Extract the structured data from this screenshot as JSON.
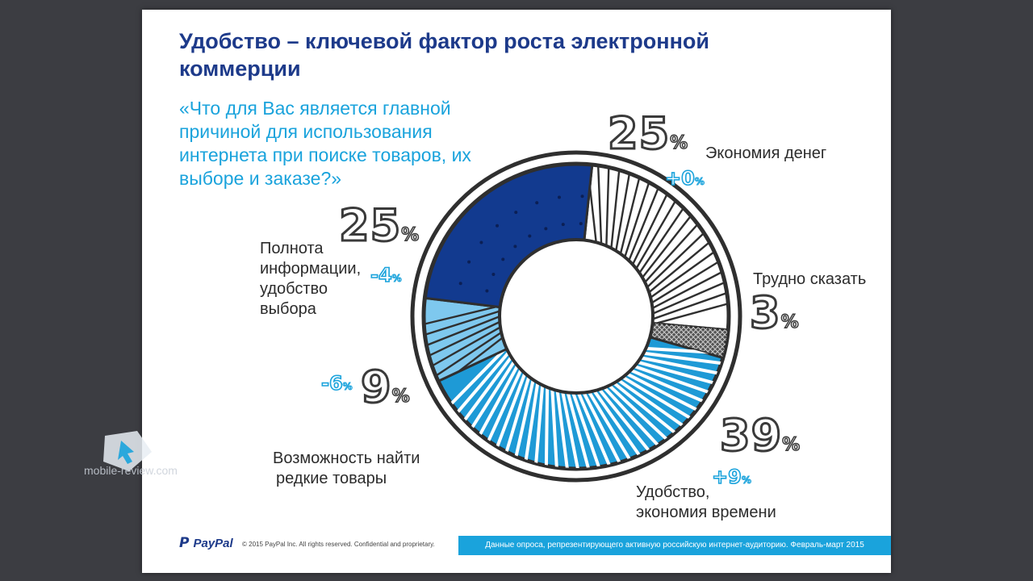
{
  "title": "Удобство – ключевой фактор роста электронной коммерции",
  "question": "«Что для Вас является главной причиной для использования интернета при поиске товаров, их выборе и заказе?»",
  "chart_data": {
    "type": "pie",
    "variant": "donut",
    "slices": [
      {
        "label": "Экономия денег",
        "value": 25,
        "change": "+0%",
        "color": "#ffffff",
        "pattern": "stripes-dark"
      },
      {
        "label": "Трудно сказать",
        "value": 3,
        "change": "",
        "color": "#555555",
        "pattern": "crosshatch"
      },
      {
        "label": "Удобство, экономия времени",
        "value": 39,
        "change": "+9%",
        "color": "#1e9ad6",
        "pattern": "stripes-white"
      },
      {
        "label": "Возможность найти редкие товары",
        "value": 9,
        "change": "-6%",
        "color": "#7ec8ee",
        "pattern": "stripes-dark"
      },
      {
        "label": "Полнота информации, удобство выбора",
        "value": 25,
        "change": "-4%",
        "color": "#123a8f",
        "pattern": "dots"
      }
    ],
    "labels": {
      "econ": "Экономия денег",
      "hard": "Трудно сказать",
      "conv_1": "Удобство,",
      "conv_2": "экономия времени",
      "rare_1": "Возможность найти",
      "rare_2": "редкие товары",
      "full_1": "Полнота",
      "full_2": "информации,",
      "full_3": "удобство",
      "full_4": "выбора"
    },
    "numbers": {
      "econ": "25",
      "hard": "3",
      "conv": "39",
      "rare": "9",
      "full": "25",
      "pct": "%"
    },
    "changes": {
      "econ": "+0",
      "conv": "+9",
      "rare": "-6",
      "full": "-4",
      "pct": "%"
    }
  },
  "footer": {
    "logo_mark": "P",
    "logo_text": "PayPal",
    "copyright": "© 2015 PayPal Inc. All rights reserved. Confidential and proprietary.",
    "source": "Данные опроса, репрезентирующего активную российскую интернет-аудиторию. Февраль-март 2015"
  },
  "watermark": "mobile-review.com",
  "colors": {
    "title": "#1d3a8a",
    "accent": "#1aa3dc"
  }
}
